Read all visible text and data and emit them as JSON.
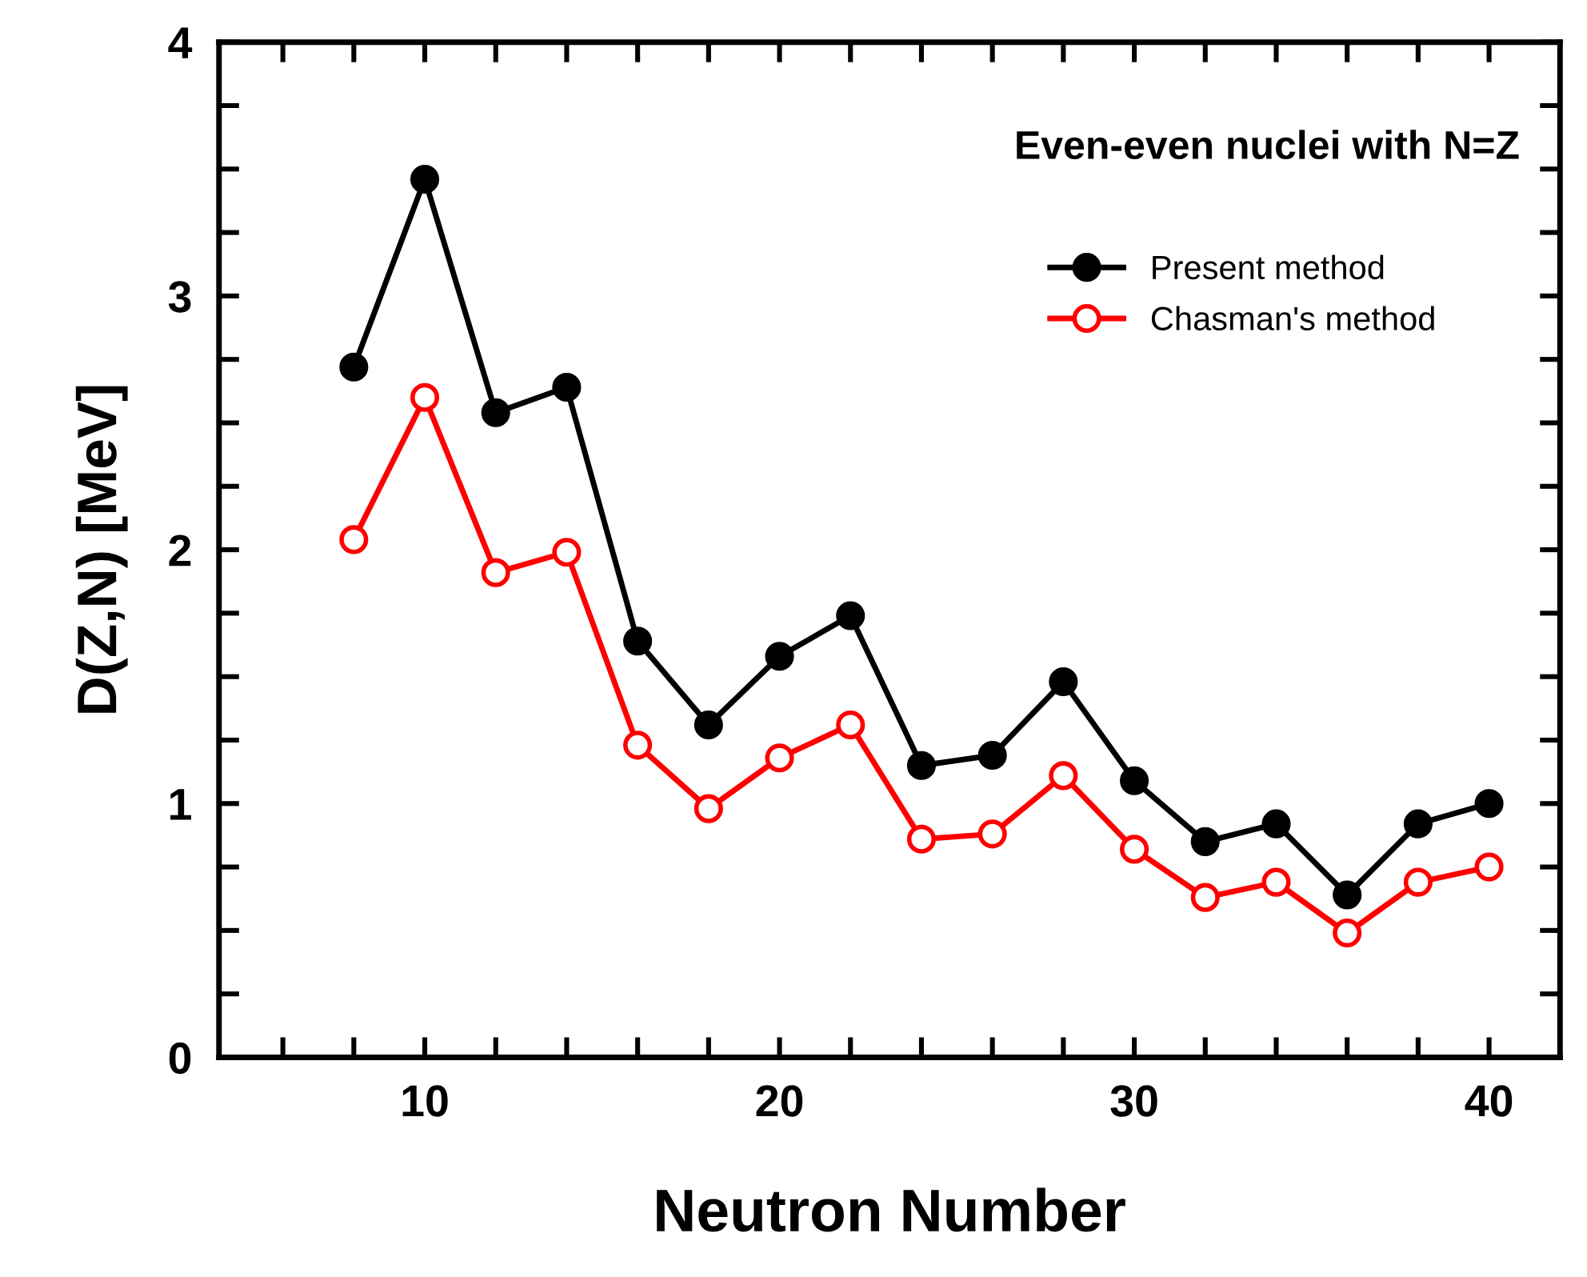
{
  "chart_data": {
    "type": "line",
    "xlabel": "Neutron Number",
    "ylabel": "D(Z,N) [MeV]",
    "annotations": [
      "Even-even nuclei with N=Z"
    ],
    "x": [
      8,
      10,
      12,
      14,
      16,
      18,
      20,
      22,
      24,
      26,
      28,
      30,
      32,
      34,
      36,
      38,
      40
    ],
    "series": [
      {
        "name": "Present method",
        "color": "#000000",
        "marker": "circle",
        "values": [
          2.72,
          3.46,
          2.54,
          2.64,
          1.64,
          1.31,
          1.58,
          1.74,
          1.15,
          1.19,
          1.48,
          1.09,
          0.85,
          0.92,
          0.64,
          0.92,
          1.0
        ]
      },
      {
        "name": "Chasman's method",
        "color": "#ff0000",
        "marker": "circle",
        "values": [
          2.04,
          2.6,
          1.91,
          1.99,
          1.23,
          0.98,
          1.18,
          1.31,
          0.86,
          0.88,
          1.11,
          0.82,
          0.63,
          0.69,
          0.49,
          0.69,
          0.75
        ]
      }
    ],
    "xlim": [
      4.2,
      42
    ],
    "xticks": [
      {
        "value": 6,
        "label": null
      },
      {
        "value": 8,
        "label": null
      },
      10,
      {
        "value": 12,
        "label": null
      },
      {
        "value": 14,
        "label": null
      },
      {
        "value": 16,
        "label": null
      },
      {
        "value": 18,
        "label": null
      },
      20,
      {
        "value": 22,
        "label": null
      },
      {
        "value": 24,
        "label": null
      },
      {
        "value": 26,
        "label": null
      },
      {
        "value": 28,
        "label": null
      },
      30,
      {
        "value": 32,
        "label": null
      },
      {
        "value": 34,
        "label": null
      },
      {
        "value": 36,
        "label": null
      },
      {
        "value": 38,
        "label": null
      },
      40
    ],
    "ylim": [
      0,
      4
    ],
    "yticks": [
      0,
      {
        "value": 0.25,
        "label": null
      },
      {
        "value": 0.5,
        "label": null
      },
      {
        "value": 0.75,
        "label": null
      },
      1,
      {
        "value": 1.25,
        "label": null
      },
      {
        "value": 1.5,
        "label": null
      },
      {
        "value": 1.75,
        "label": null
      },
      2,
      {
        "value": 2.25,
        "label": null
      },
      {
        "value": 2.5,
        "label": null
      },
      {
        "value": 2.75,
        "label": null
      },
      3,
      {
        "value": 3.25,
        "label": null
      },
      {
        "value": 3.5,
        "label": null
      },
      {
        "value": 3.75,
        "label": null
      },
      4
    ],
    "legend": "top right",
    "grid": false,
    "line_style": "solid"
  }
}
